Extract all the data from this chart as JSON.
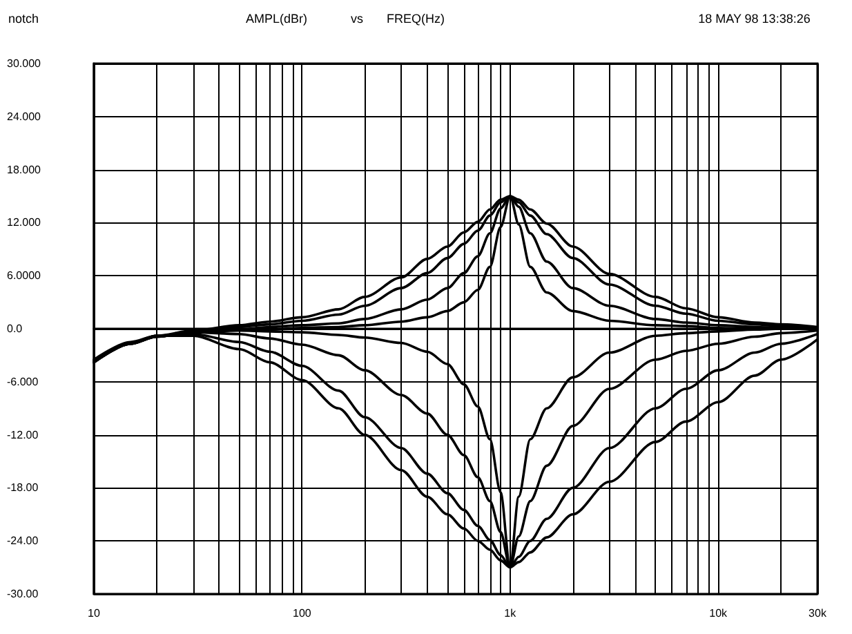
{
  "chart_data": {
    "type": "line",
    "title": "notch",
    "ylabel": "AMPL(dBr)",
    "xlabel": "FREQ(Hz)",
    "annotations": [
      "vs",
      "18 MAY 98 13:38:26"
    ],
    "x": [
      10,
      15,
      20,
      30,
      50,
      70,
      100,
      150,
      200,
      300,
      400,
      500,
      600,
      700,
      800,
      900,
      1000,
      1100,
      1250,
      1500,
      2000,
      3000,
      5000,
      7000,
      10000,
      15000,
      20000,
      30000
    ],
    "series": [
      {
        "color": "#000000",
        "values": [
          -3.8,
          -1.6,
          -0.8,
          -0.2,
          0.4,
          0.8,
          1.3,
          2.2,
          3.6,
          5.8,
          7.9,
          9.3,
          10.9,
          12.1,
          13.5,
          14.6,
          15,
          14.6,
          13.5,
          11.9,
          9.3,
          6.2,
          3.6,
          2.3,
          1.3,
          0.7,
          0.5,
          0.2
        ]
      },
      {
        "color": "#000000",
        "values": [
          -3.8,
          -1.7,
          -0.9,
          -0.3,
          0.2,
          0.5,
          0.9,
          1.6,
          2.6,
          4.6,
          6.3,
          8,
          9.6,
          11.1,
          12.8,
          14.3,
          15,
          14.3,
          12.8,
          10.7,
          8,
          5,
          2.6,
          1.7,
          0.9,
          0.5,
          0.3,
          0.1
        ]
      },
      {
        "color": "#000000",
        "values": [
          -3.8,
          -1.7,
          -0.9,
          -0.4,
          -0.1,
          0.2,
          0.4,
          0.6,
          1.1,
          2.2,
          3.3,
          4.6,
          6.3,
          8.2,
          10.8,
          13.6,
          15,
          13.8,
          10.8,
          7.6,
          4.6,
          2.6,
          1.1,
          0.7,
          0.4,
          0.2,
          0.1,
          0
        ]
      },
      {
        "color": "#000000",
        "values": [
          -3.8,
          -1.7,
          -0.9,
          -0.4,
          -0.2,
          -0.1,
          0.1,
          0.2,
          0.4,
          0.8,
          1.3,
          2,
          3,
          4.4,
          7,
          11.5,
          15,
          11.8,
          7,
          4.1,
          2,
          0.9,
          0.4,
          0.3,
          0.1,
          0,
          0,
          0
        ]
      },
      {
        "color": "#000000",
        "values": [
          -3.5,
          -1.5,
          -0.8,
          -0.8,
          -2.3,
          -3.8,
          -5.8,
          -9,
          -12,
          -16,
          -19,
          -21,
          -22.6,
          -24,
          -25,
          -26.2,
          -27,
          -26.4,
          -25.3,
          -23.6,
          -21,
          -17.3,
          -12.8,
          -10.5,
          -8.3,
          -5.3,
          -3.5,
          -1.2
        ]
      },
      {
        "color": "#000000",
        "values": [
          -3.6,
          -1.6,
          -0.8,
          -0.6,
          -1.5,
          -2.6,
          -4.2,
          -7,
          -10,
          -13.5,
          -16.4,
          -18.6,
          -20.5,
          -22.3,
          -23.9,
          -25.6,
          -27,
          -25.8,
          -24,
          -21.5,
          -18,
          -13.5,
          -9,
          -6.8,
          -4.7,
          -2.7,
          -1.7,
          -0.6
        ]
      },
      {
        "color": "#000000",
        "values": [
          -3.7,
          -1.6,
          -0.8,
          -0.4,
          -0.6,
          -1.1,
          -1.8,
          -3,
          -4.7,
          -7.5,
          -9.6,
          -12,
          -14.3,
          -16.8,
          -19.5,
          -23,
          -27,
          -23.5,
          -19.5,
          -15.5,
          -11,
          -6.8,
          -3.5,
          -2.5,
          -1.7,
          -0.9,
          -0.5,
          -0.2
        ]
      },
      {
        "color": "#000000",
        "values": [
          -3.8,
          -1.7,
          -0.9,
          -0.4,
          -0.2,
          -0.3,
          -0.4,
          -0.7,
          -1,
          -1.6,
          -2.6,
          -4,
          -6.3,
          -8.8,
          -12.5,
          -18.5,
          -27,
          -19,
          -12.5,
          -9,
          -5.5,
          -2.7,
          -0.8,
          -0.5,
          -0.3,
          -0.1,
          0,
          0
        ]
      }
    ],
    "log": "x",
    "xlim": [
      10,
      30000
    ],
    "xticks": [
      10,
      {
        "value": 20,
        "label": null
      },
      {
        "value": 30,
        "label": null
      },
      {
        "value": 40,
        "label": null
      },
      {
        "value": 50,
        "label": null
      },
      {
        "value": 60,
        "label": null
      },
      {
        "value": 70,
        "label": null
      },
      {
        "value": 80,
        "label": null
      },
      {
        "value": 90,
        "label": null
      },
      100,
      {
        "value": 200,
        "label": null
      },
      {
        "value": 300,
        "label": null
      },
      {
        "value": 400,
        "label": null
      },
      {
        "value": 500,
        "label": null
      },
      {
        "value": 600,
        "label": null
      },
      {
        "value": 700,
        "label": null
      },
      {
        "value": 800,
        "label": null
      },
      {
        "value": 900,
        "label": null
      },
      {
        "value": 1000,
        "label": "1k"
      },
      {
        "value": 2000,
        "label": null
      },
      {
        "value": 3000,
        "label": null
      },
      {
        "value": 4000,
        "label": null
      },
      {
        "value": 5000,
        "label": null
      },
      {
        "value": 6000,
        "label": null
      },
      {
        "value": 7000,
        "label": null
      },
      {
        "value": 8000,
        "label": null
      },
      {
        "value": 9000,
        "label": null
      },
      {
        "value": 10000,
        "label": "10k"
      },
      {
        "value": 20000,
        "label": null
      },
      {
        "value": 30000,
        "label": "30k"
      }
    ],
    "ylim": [
      -30,
      30
    ],
    "yticks": [
      {
        "value": 30,
        "label": "30.000"
      },
      {
        "value": 24,
        "label": "24.000"
      },
      {
        "value": 18,
        "label": "18.000"
      },
      {
        "value": 12,
        "label": "12.000"
      },
      {
        "value": 6,
        "label": "6.0000"
      },
      {
        "value": 0,
        "label": "0.0"
      },
      {
        "value": -6,
        "label": "-6.000"
      },
      {
        "value": -12,
        "label": "-12.00"
      },
      {
        "value": -18,
        "label": "-18.00"
      },
      {
        "value": -24,
        "label": "-24.00"
      },
      {
        "value": -30,
        "label": "-30.00"
      }
    ],
    "grid": true,
    "marker": "none",
    "line_style": "solid"
  }
}
